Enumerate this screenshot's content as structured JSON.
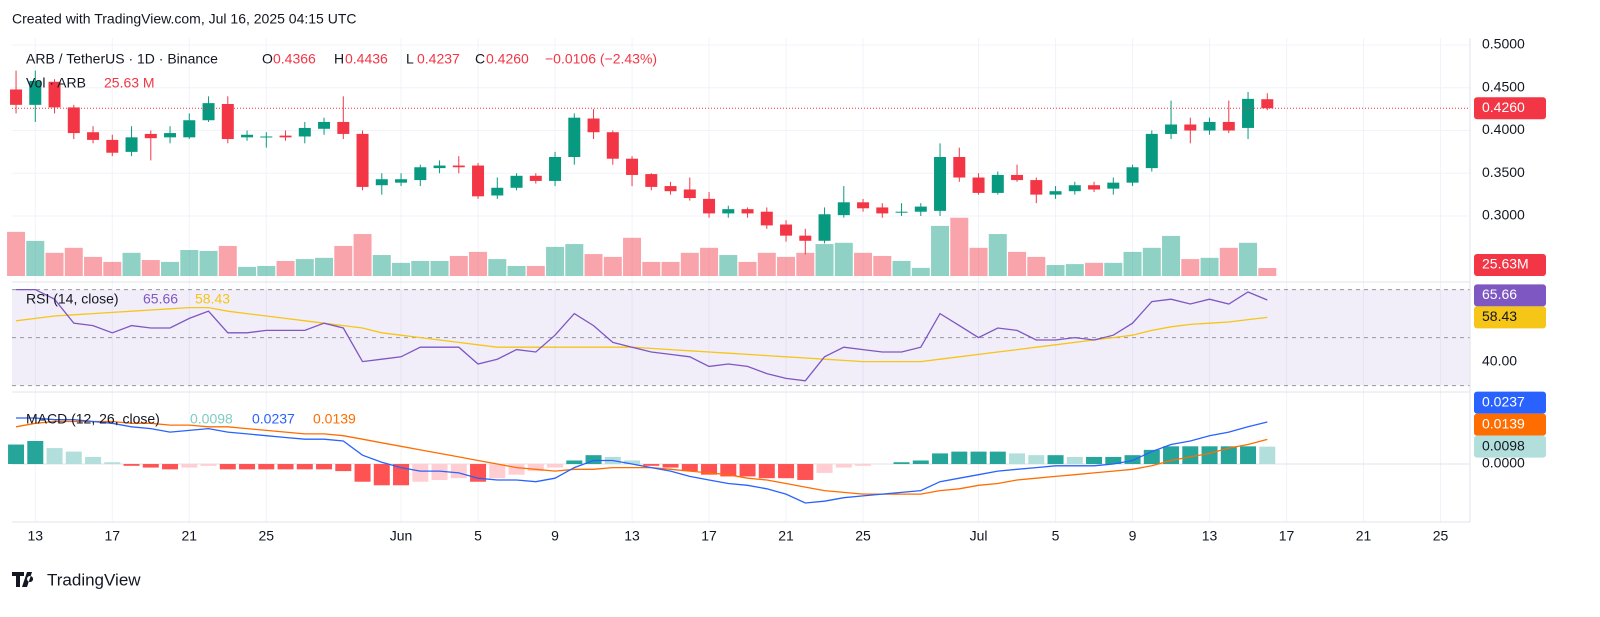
{
  "chart_data": {
    "type": "candlestick",
    "header": "Created with TradingView.com, Jul 16, 2025 04:15 UTC",
    "symbol": "ARB / TetherUS · 1D · Binance",
    "ohlc_labels": [
      "O",
      "H",
      "L",
      "C"
    ],
    "change": "−0.0106 (−2.43%)",
    "brand": "TradingView",
    "up_color": "#089981",
    "down_color": "#f23645",
    "open": [
      0.448,
      0.43,
      0.457,
      0.427,
      0.398,
      0.389,
      0.375,
      0.396,
      0.392,
      0.392,
      0.412,
      0.431,
      0.392,
      0.392,
      0.394,
      0.393,
      0.402,
      0.41,
      0.396,
      0.336,
      0.339,
      0.342,
      0.356,
      0.359,
      0.359,
      0.324,
      0.333,
      0.347,
      0.341,
      0.369,
      0.414,
      0.398,
      0.367,
      0.349,
      0.335,
      0.331,
      0.32,
      0.303,
      0.308,
      0.305,
      0.29,
      0.277,
      0.271,
      0.301,
      0.316,
      0.31,
      0.304,
      0.305,
      0.306,
      0.369,
      0.345,
      0.327,
      0.348,
      0.342,
      0.325,
      0.329,
      0.336,
      0.332,
      0.339,
      0.356,
      0.396,
      0.407,
      0.4,
      0.41,
      0.403,
      0.4366
    ],
    "high": [
      0.47,
      0.47,
      0.46,
      0.43,
      0.405,
      0.395,
      0.405,
      0.4,
      0.405,
      0.42,
      0.44,
      0.44,
      0.4,
      0.398,
      0.4,
      0.41,
      0.415,
      0.44,
      0.4,
      0.35,
      0.35,
      0.36,
      0.365,
      0.37,
      0.362,
      0.345,
      0.35,
      0.35,
      0.375,
      0.42,
      0.425,
      0.4,
      0.37,
      0.35,
      0.34,
      0.345,
      0.328,
      0.312,
      0.31,
      0.31,
      0.295,
      0.285,
      0.31,
      0.335,
      0.32,
      0.315,
      0.315,
      0.315,
      0.385,
      0.38,
      0.35,
      0.352,
      0.36,
      0.345,
      0.335,
      0.34,
      0.34,
      0.345,
      0.36,
      0.4,
      0.435,
      0.415,
      0.415,
      0.435,
      0.445,
      0.4436
    ],
    "low": [
      0.42,
      0.41,
      0.42,
      0.39,
      0.385,
      0.37,
      0.37,
      0.365,
      0.385,
      0.39,
      0.41,
      0.385,
      0.388,
      0.38,
      0.388,
      0.385,
      0.395,
      0.39,
      0.33,
      0.325,
      0.335,
      0.335,
      0.35,
      0.35,
      0.32,
      0.32,
      0.33,
      0.338,
      0.335,
      0.36,
      0.39,
      0.36,
      0.335,
      0.33,
      0.325,
      0.318,
      0.298,
      0.298,
      0.298,
      0.285,
      0.27,
      0.255,
      0.268,
      0.298,
      0.305,
      0.298,
      0.3,
      0.3,
      0.3,
      0.34,
      0.325,
      0.325,
      0.34,
      0.315,
      0.32,
      0.325,
      0.328,
      0.325,
      0.335,
      0.352,
      0.39,
      0.385,
      0.395,
      0.397,
      0.39,
      0.4237
    ],
    "close": [
      0.43,
      0.458,
      0.427,
      0.397,
      0.389,
      0.374,
      0.392,
      0.391,
      0.397,
      0.412,
      0.432,
      0.39,
      0.395,
      0.393,
      0.392,
      0.403,
      0.41,
      0.396,
      0.334,
      0.343,
      0.343,
      0.357,
      0.359,
      0.357,
      0.323,
      0.333,
      0.347,
      0.341,
      0.369,
      0.415,
      0.398,
      0.367,
      0.348,
      0.334,
      0.329,
      0.321,
      0.303,
      0.308,
      0.303,
      0.289,
      0.277,
      0.271,
      0.302,
      0.316,
      0.309,
      0.303,
      0.305,
      0.311,
      0.369,
      0.345,
      0.327,
      0.348,
      0.342,
      0.325,
      0.329,
      0.336,
      0.331,
      0.339,
      0.357,
      0.396,
      0.407,
      0.4,
      0.41,
      0.4,
      0.437,
      0.426
    ],
    "last_label": "0.4260",
    "ylim": [
      0.2298,
      0.5082
    ],
    "yticks": [
      {
        "value": 0.5,
        "label": "0.5000"
      },
      {
        "value": 0.45,
        "label": "0.4500"
      },
      {
        "value": 0.4,
        "label": "0.4000"
      },
      {
        "value": 0.35,
        "label": "0.3500"
      },
      {
        "value": 0.3,
        "label": "0.3000"
      }
    ],
    "xlim": [
      -0.21,
      75.53
    ],
    "xticks": [
      {
        "value": 1,
        "label": "13"
      },
      {
        "value": 5,
        "label": "17"
      },
      {
        "value": 9,
        "label": "21"
      },
      {
        "value": 13,
        "label": "25"
      },
      {
        "value": 20,
        "label": "Jun"
      },
      {
        "value": 24,
        "label": "5"
      },
      {
        "value": 28,
        "label": "9"
      },
      {
        "value": 32,
        "label": "13"
      },
      {
        "value": 36,
        "label": "17"
      },
      {
        "value": 40,
        "label": "21"
      },
      {
        "value": 44,
        "label": "25"
      },
      {
        "value": 50,
        "label": "Jul"
      },
      {
        "value": 54,
        "label": "5"
      },
      {
        "value": 58,
        "label": "9"
      },
      {
        "value": 62,
        "label": "13"
      },
      {
        "value": 66,
        "label": "17"
      },
      {
        "value": 70,
        "label": "21"
      },
      {
        "value": 74,
        "label": "25"
      }
    ],
    "volume": {
      "name": "Vol · ARB",
      "values": [
        141,
        112,
        74,
        90,
        61,
        45,
        74,
        51,
        45,
        83,
        80,
        96,
        29,
        32,
        48,
        54,
        58,
        96,
        134,
        67,
        42,
        48,
        48,
        64,
        77,
        54,
        32,
        32,
        93,
        102,
        70,
        61,
        122,
        45,
        45,
        74,
        90,
        67,
        45,
        74,
        61,
        74,
        102,
        106,
        74,
        64,
        48,
        26,
        160,
        186,
        90,
        134,
        77,
        61,
        35,
        38,
        42,
        42,
        77,
        90,
        128,
        54,
        58,
        90,
        106,
        25.63
      ],
      "legend_label": "25.63 M",
      "axis_label": "25.63M",
      "ylim": [
        0,
        760
      ]
    },
    "rsi": {
      "name": "RSI (14, close)",
      "color": "#7e57c2",
      "ma_color": "#f5c518",
      "values": [
        70,
        70,
        66,
        56,
        55,
        52,
        55,
        54,
        54,
        58,
        61,
        52,
        52,
        53,
        53,
        53,
        56,
        54,
        40,
        41,
        42,
        46,
        46,
        46,
        39,
        41,
        45,
        44,
        51,
        60,
        55,
        48,
        46,
        44,
        43,
        42,
        38,
        39,
        38,
        35,
        33,
        32,
        42,
        46,
        45,
        44,
        44,
        46,
        60,
        55,
        50,
        54,
        53,
        49,
        49,
        50,
        49,
        51,
        56,
        65,
        66,
        64,
        66,
        64,
        69,
        65.66
      ],
      "ma_values": [
        57,
        58,
        59,
        59.5,
        60,
        60.5,
        61,
        61.5,
        62,
        62.5,
        62.5,
        61,
        60,
        59,
        58,
        57,
        56,
        55,
        54,
        52,
        51,
        50,
        49,
        48,
        47,
        46,
        46,
        46,
        46,
        46,
        46,
        46,
        46,
        45.5,
        45,
        44.5,
        44,
        43.5,
        43,
        42.5,
        42,
        41.5,
        41,
        40.5,
        40,
        40,
        40,
        40,
        41,
        42,
        43,
        44,
        45,
        46,
        47,
        48,
        49,
        50,
        51,
        53,
        54.5,
        55.5,
        56,
        56.5,
        57.5,
        58.43
      ],
      "ylim": [
        29,
        71.5
      ],
      "yticks": [
        {
          "value": 40,
          "label": "40.00"
        }
      ],
      "levels": [
        70,
        50,
        30
      ]
    },
    "macd": {
      "name": "MACD (12, 26, close)",
      "macd_color": "#2962ff",
      "signal_color": "#ff6d00",
      "histogram_colors": [
        "#26a69a",
        "#b2dfdb",
        "#ffcdd2",
        "#ff5252"
      ],
      "histogram_legend_color": "#80cbc4",
      "macd": [
        0.026,
        0.026,
        0.025,
        0.025,
        0.024,
        0.023,
        0.021,
        0.02,
        0.018,
        0.019,
        0.02,
        0.018,
        0.017,
        0.016,
        0.015,
        0.014,
        0.014,
        0.013,
        0.005,
        0.001,
        -0.002,
        -0.004,
        -0.004,
        -0.005,
        -0.008,
        -0.009,
        -0.009,
        -0.01,
        -0.008,
        -0.002,
        0.002,
        0.002,
        0,
        -0.002,
        -0.004,
        -0.007,
        -0.009,
        -0.011,
        -0.012,
        -0.014,
        -0.017,
        -0.022,
        -0.021,
        -0.019,
        -0.018,
        -0.017,
        -0.016,
        -0.015,
        -0.01,
        -0.008,
        -0.006,
        -0.004,
        -0.003,
        -0.002,
        -0.001,
        -0.001,
        -0.001,
        0,
        0.002,
        0.007,
        0.011,
        0.013,
        0.016,
        0.018,
        0.021,
        0.0237
      ],
      "signal": [
        0.021,
        0.023,
        0.024,
        0.024,
        0.024,
        0.024,
        0.023,
        0.023,
        0.022,
        0.022,
        0.021,
        0.021,
        0.02,
        0.019,
        0.018,
        0.017,
        0.017,
        0.016,
        0.014,
        0.012,
        0.01,
        0.008,
        0.006,
        0.004,
        0.002,
        0,
        -0.002,
        -0.003,
        -0.004,
        -0.003,
        -0.003,
        -0.002,
        -0.002,
        -0.002,
        -0.003,
        -0.004,
        -0.005,
        -0.006,
        -0.008,
        -0.009,
        -0.011,
        -0.013,
        -0.015,
        -0.016,
        -0.017,
        -0.017,
        -0.017,
        -0.017,
        -0.015,
        -0.014,
        -0.012,
        -0.011,
        -0.009,
        -0.008,
        -0.007,
        -0.006,
        -0.005,
        -0.004,
        -0.003,
        -0.001,
        0.002,
        0.004,
        0.006,
        0.009,
        0.011,
        0.0139
      ],
      "histogram": [
        0.011,
        0.013,
        0.009,
        0.007,
        0.004,
        0.001,
        -0.001,
        -0.002,
        -0.003,
        -0.002,
        -0.001,
        -0.003,
        -0.003,
        -0.003,
        -0.003,
        -0.003,
        -0.003,
        -0.004,
        -0.01,
        -0.012,
        -0.012,
        -0.01,
        -0.009,
        -0.008,
        -0.01,
        -0.008,
        -0.006,
        -0.004,
        -0.002,
        0.002,
        0.005,
        0.004,
        0.002,
        -0.001,
        -0.002,
        -0.004,
        -0.006,
        -0.007,
        -0.007,
        -0.008,
        -0.008,
        -0.009,
        -0.005,
        -0.002,
        -0.001,
        0,
        0.001,
        0.002,
        0.006,
        0.007,
        0.007,
        0.007,
        0.006,
        0.005,
        0.005,
        0.004,
        0.004,
        0.004,
        0.005,
        0.008,
        0.01,
        0.01,
        0.01,
        0.01,
        0.01,
        0.0098
      ],
      "ylim": [
        -0.0316,
        0.0384
      ],
      "yticks": [
        {
          "value": 0,
          "label": "0.0000"
        }
      ]
    }
  }
}
